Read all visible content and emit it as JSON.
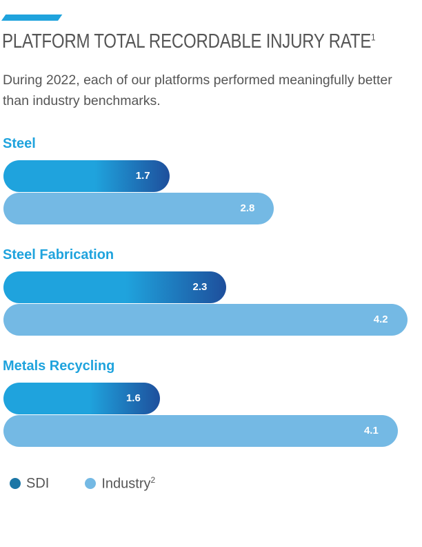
{
  "chart_data": {
    "type": "bar",
    "orientation": "horizontal",
    "title": "PLATFORM TOTAL RECORDABLE INJURY RATE",
    "title_footnote": "1",
    "subtitle": "During 2022, each of our platforms performed meaningfully better than industry benchmarks.",
    "categories": [
      "Steel",
      "Steel Fabrication",
      "Metals Recycling"
    ],
    "series": [
      {
        "name": "SDI",
        "values": [
          1.7,
          2.3,
          1.6
        ],
        "color": "#1fa3dd"
      },
      {
        "name": "Industry",
        "footnote": "2",
        "values": [
          2.8,
          4.2,
          4.1
        ],
        "color": "#74b9e4"
      }
    ],
    "legend_position": "bottom-left",
    "grid": false,
    "accent_color": "#1fa3dd",
    "legend_colors": {
      "SDI": "#1b76a6",
      "Industry": "#74b9e4"
    }
  }
}
